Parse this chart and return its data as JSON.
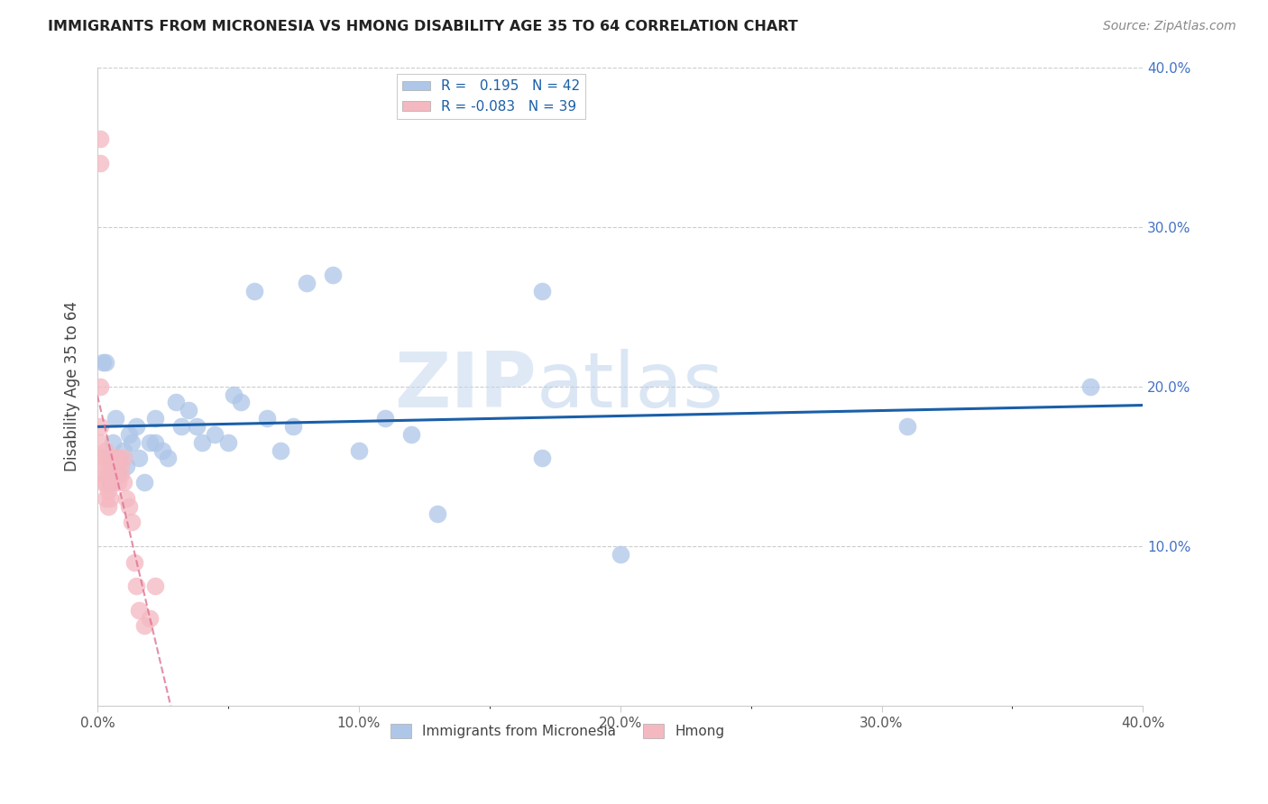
{
  "title": "IMMIGRANTS FROM MICRONESIA VS HMONG DISABILITY AGE 35 TO 64 CORRELATION CHART",
  "source": "Source: ZipAtlas.com",
  "ylabel": "Disability Age 35 to 64",
  "xlim": [
    0.0,
    0.4
  ],
  "ylim": [
    0.0,
    0.4
  ],
  "xtick_labels": [
    "0.0%",
    "",
    "10.0%",
    "",
    "20.0%",
    "",
    "30.0%",
    "",
    "40.0%"
  ],
  "xtick_vals": [
    0.0,
    0.05,
    0.1,
    0.15,
    0.2,
    0.25,
    0.3,
    0.35,
    0.4
  ],
  "ytick_labels": [
    "10.0%",
    "20.0%",
    "30.0%",
    "40.0%"
  ],
  "ytick_vals": [
    0.1,
    0.2,
    0.3,
    0.4
  ],
  "r_micronesia": 0.195,
  "n_micronesia": 42,
  "r_hmong": -0.083,
  "n_hmong": 39,
  "micronesia_color": "#aec6e8",
  "hmong_color": "#f4b8c1",
  "trendline_micronesia_color": "#1a5fa8",
  "trendline_hmong_color": "#e07090",
  "watermark_zip": "ZIP",
  "watermark_atlas": "atlas",
  "micronesia_x": [
    0.002,
    0.003,
    0.005,
    0.006,
    0.007,
    0.008,
    0.01,
    0.011,
    0.012,
    0.013,
    0.015,
    0.016,
    0.018,
    0.02,
    0.022,
    0.022,
    0.025,
    0.027,
    0.03,
    0.032,
    0.035,
    0.038,
    0.04,
    0.045,
    0.05,
    0.052,
    0.055,
    0.06,
    0.065,
    0.07,
    0.075,
    0.08,
    0.09,
    0.1,
    0.11,
    0.12,
    0.13,
    0.17,
    0.2,
    0.17,
    0.31,
    0.38
  ],
  "micronesia_y": [
    0.215,
    0.215,
    0.14,
    0.165,
    0.18,
    0.145,
    0.16,
    0.15,
    0.17,
    0.165,
    0.175,
    0.155,
    0.14,
    0.165,
    0.18,
    0.165,
    0.16,
    0.155,
    0.19,
    0.175,
    0.185,
    0.175,
    0.165,
    0.17,
    0.165,
    0.195,
    0.19,
    0.26,
    0.18,
    0.16,
    0.175,
    0.265,
    0.27,
    0.16,
    0.18,
    0.17,
    0.12,
    0.155,
    0.095,
    0.26,
    0.175,
    0.2
  ],
  "hmong_x": [
    0.001,
    0.001,
    0.001,
    0.001,
    0.001,
    0.002,
    0.002,
    0.002,
    0.002,
    0.003,
    0.003,
    0.003,
    0.003,
    0.004,
    0.004,
    0.004,
    0.005,
    0.005,
    0.005,
    0.006,
    0.006,
    0.006,
    0.007,
    0.007,
    0.008,
    0.008,
    0.009,
    0.009,
    0.01,
    0.01,
    0.011,
    0.012,
    0.013,
    0.014,
    0.015,
    0.016,
    0.018,
    0.02,
    0.022
  ],
  "hmong_y": [
    0.355,
    0.34,
    0.2,
    0.175,
    0.165,
    0.155,
    0.15,
    0.145,
    0.14,
    0.16,
    0.155,
    0.14,
    0.13,
    0.145,
    0.135,
    0.125,
    0.155,
    0.145,
    0.13,
    0.155,
    0.145,
    0.14,
    0.155,
    0.145,
    0.155,
    0.14,
    0.15,
    0.145,
    0.155,
    0.14,
    0.13,
    0.125,
    0.115,
    0.09,
    0.075,
    0.06,
    0.05,
    0.055,
    0.075
  ]
}
